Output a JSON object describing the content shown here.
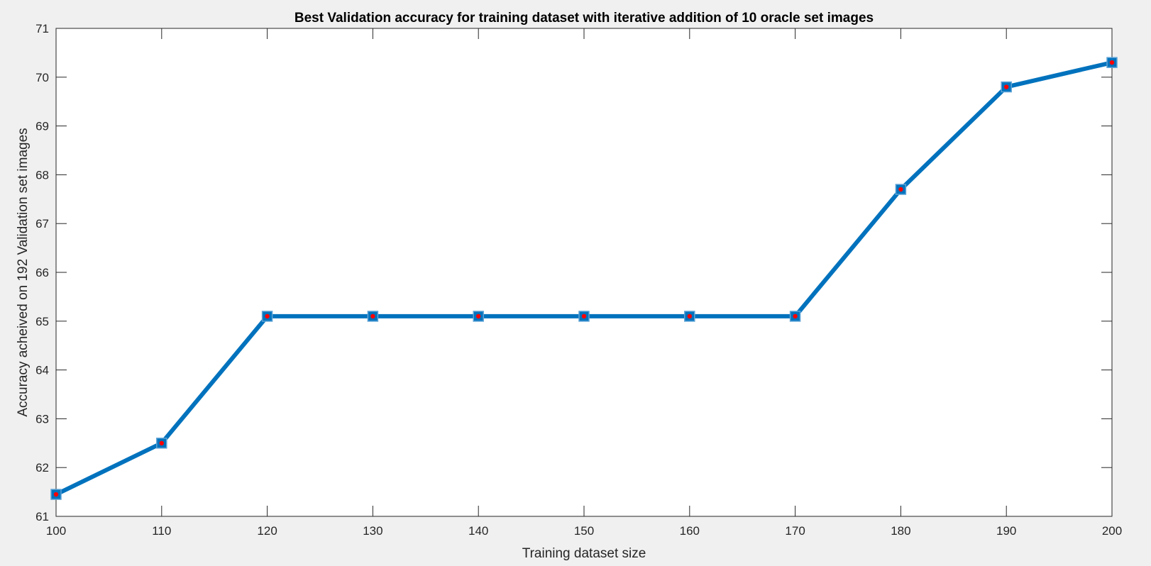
{
  "chart_data": {
    "type": "line",
    "title": "Best Validation accuracy for training dataset with iterative addition of 10 oracle set images",
    "xlabel": "Training dataset size",
    "ylabel": "Accuracy acheived on 192 Validation set images",
    "x": [
      100,
      110,
      120,
      130,
      140,
      150,
      160,
      170,
      180,
      190,
      200
    ],
    "series": [
      {
        "values": [
          61.45,
          62.5,
          65.1,
          65.1,
          65.1,
          65.1,
          65.1,
          65.1,
          67.7,
          69.8,
          70.3
        ]
      }
    ],
    "xlim": [
      100,
      200
    ],
    "ylim": [
      61,
      71
    ],
    "xticks": [
      "100",
      "110",
      "120",
      "130",
      "140",
      "150",
      "160",
      "170",
      "180",
      "190",
      "200"
    ],
    "yticks": [
      "61",
      "62",
      "63",
      "64",
      "65",
      "66",
      "67",
      "68",
      "69",
      "70",
      "71"
    ],
    "grid": false,
    "line_color": "#0072BD",
    "marker": "square",
    "marker_color": "#0072BD",
    "point_color": "#FF0000",
    "background_color": "#F0F0F0",
    "plot_background": "#FFFFFF"
  }
}
